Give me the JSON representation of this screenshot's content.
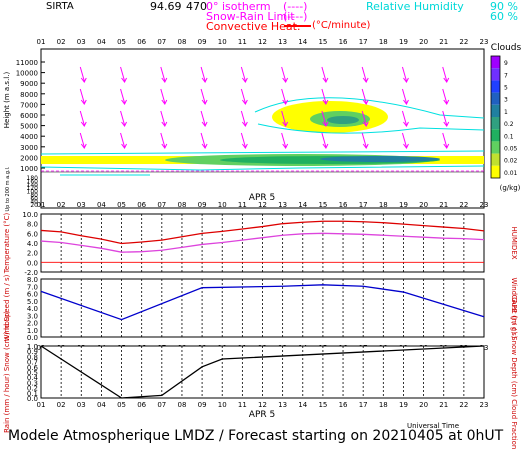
{
  "header": {
    "station": "SIRTA",
    "station_value": "94.69",
    "elevation": "470",
    "legend_isotherm": "0° isotherm",
    "legend_isotherm_dash": "(----)",
    "legend_snow": "Snow-Rain Limit",
    "legend_snow_dash": "(----)",
    "legend_convective": "Convective Heat.",
    "legend_convective_unit": "(°C/minute)",
    "legend_rh": "Relative Humidity",
    "legend_rh_90": "90 %",
    "legend_rh_60": "60 %",
    "colors": {
      "isotherm": "#ff00ff",
      "snow": "#ff00ff",
      "convective": "#ff0000",
      "rh": "#00e0e0"
    }
  },
  "date_label": "APR  5",
  "hours": [
    "01",
    "02",
    "03",
    "04",
    "05",
    "06",
    "07",
    "08",
    "09",
    "10",
    "11",
    "12",
    "13",
    "14",
    "15",
    "16",
    "17",
    "18",
    "19",
    "20",
    "21",
    "22",
    "23"
  ],
  "footer": {
    "universal_time": "Universal Time",
    "title": "Modele Atmospherique LMDZ / Forecast starting on 20210405 at 0hUT"
  },
  "chart_data": [
    {
      "type": "heatmap",
      "name": "clouds",
      "ylabel": "Height  (m a.s.l.)",
      "ylabel_low": "Up to 200 m a.g.l.",
      "yticks_upper": [
        "11000",
        "10000",
        "9000",
        "8000",
        "7000",
        "6000",
        "5000",
        "4000",
        "3000",
        "2000",
        "1000"
      ],
      "yticks_lower": [
        "180",
        "160",
        "140",
        "120",
        "100",
        "80",
        "60",
        "40",
        "20"
      ],
      "colorbar_title": "Clouds",
      "colorbar_labels": [
        "9",
        "7",
        "5",
        "3",
        "1",
        "0.2",
        "0.1",
        "0.05",
        "0.02",
        "0.01"
      ],
      "colorbar_unit": "(g/kg)",
      "colorbar_colors": [
        "#a000ff",
        "#7030ff",
        "#2040ff",
        "#2060c0",
        "#2080a0",
        "#30a080",
        "#20b060",
        "#60d060",
        "#c0e030",
        "#ffff00"
      ],
      "wind_arrow_color": "#ff00ff"
    },
    {
      "type": "line",
      "name": "temperature",
      "ylabel_left": "Temperature (°C)",
      "ylabel_right": "HUMIDEX",
      "yticks": [
        "10.0",
        "8.0",
        "6.0",
        "4.0",
        "2.0",
        "0.0",
        "-2.0"
      ],
      "ylim": [
        -2,
        10
      ],
      "x": [
        "01",
        "02",
        "03",
        "04",
        "05",
        "06",
        "07",
        "08",
        "09",
        "10",
        "11",
        "12",
        "13",
        "14",
        "15",
        "16",
        "17",
        "18",
        "19",
        "20",
        "21",
        "22",
        "23"
      ],
      "series": [
        {
          "color": "#dd0000",
          "values": [
            6.6,
            6.3,
            5.5,
            4.8,
            3.9,
            4.2,
            4.6,
            5.3,
            6.0,
            6.4,
            6.9,
            7.4,
            8.0,
            8.3,
            8.5,
            8.5,
            8.4,
            8.2,
            7.9,
            7.6,
            7.3,
            7.0,
            6.5
          ]
        },
        {
          "color": "#dd44dd",
          "values": [
            4.4,
            4.1,
            3.5,
            2.9,
            2.1,
            2.2,
            2.5,
            3.1,
            3.7,
            4.1,
            4.6,
            5.1,
            5.6,
            5.9,
            6.0,
            5.9,
            5.8,
            5.6,
            5.4,
            5.2,
            5.0,
            4.9,
            4.7
          ]
        }
      ],
      "zero_line_color": "#ff0000"
    },
    {
      "type": "line",
      "name": "wind",
      "ylabel_left": "Wind Speed (m / s)",
      "ylabel_right": "Wind Gust (m / s)",
      "yticks": [
        "8.0",
        "7.0",
        "6.0",
        "5.0",
        "4.0",
        "3.0",
        "2.0",
        "1.0",
        "0.0"
      ],
      "ylim": [
        0,
        8
      ],
      "x": [
        "01",
        "05",
        "09",
        "13",
        "15",
        "17",
        "19",
        "23"
      ],
      "series": [
        {
          "color": "#0000cc",
          "values": [
            6.3,
            2.4,
            6.8,
            7.0,
            7.2,
            7.0,
            6.2,
            2.8
          ]
        }
      ]
    },
    {
      "type": "line",
      "name": "precipitation",
      "ylabel_left": "Rain (mm / hour) Snow (cm / hour)",
      "ylabel_right": "CAPE (J / g) Snow Depth (cm) Cloud Fraction",
      "yticks": [
        "1.0",
        "0.9",
        "0.8",
        "0.7",
        "0.6",
        "0.5",
        "0.4",
        "0.3",
        "0.2",
        "0.1",
        "0.0"
      ],
      "ylim": [
        0,
        1
      ],
      "x": [
        "01",
        "05",
        "07",
        "09",
        "10",
        "23"
      ],
      "series": [
        {
          "color": "#000000",
          "values": [
            1.0,
            0.0,
            0.05,
            0.6,
            0.75,
            1.0
          ]
        }
      ]
    }
  ]
}
